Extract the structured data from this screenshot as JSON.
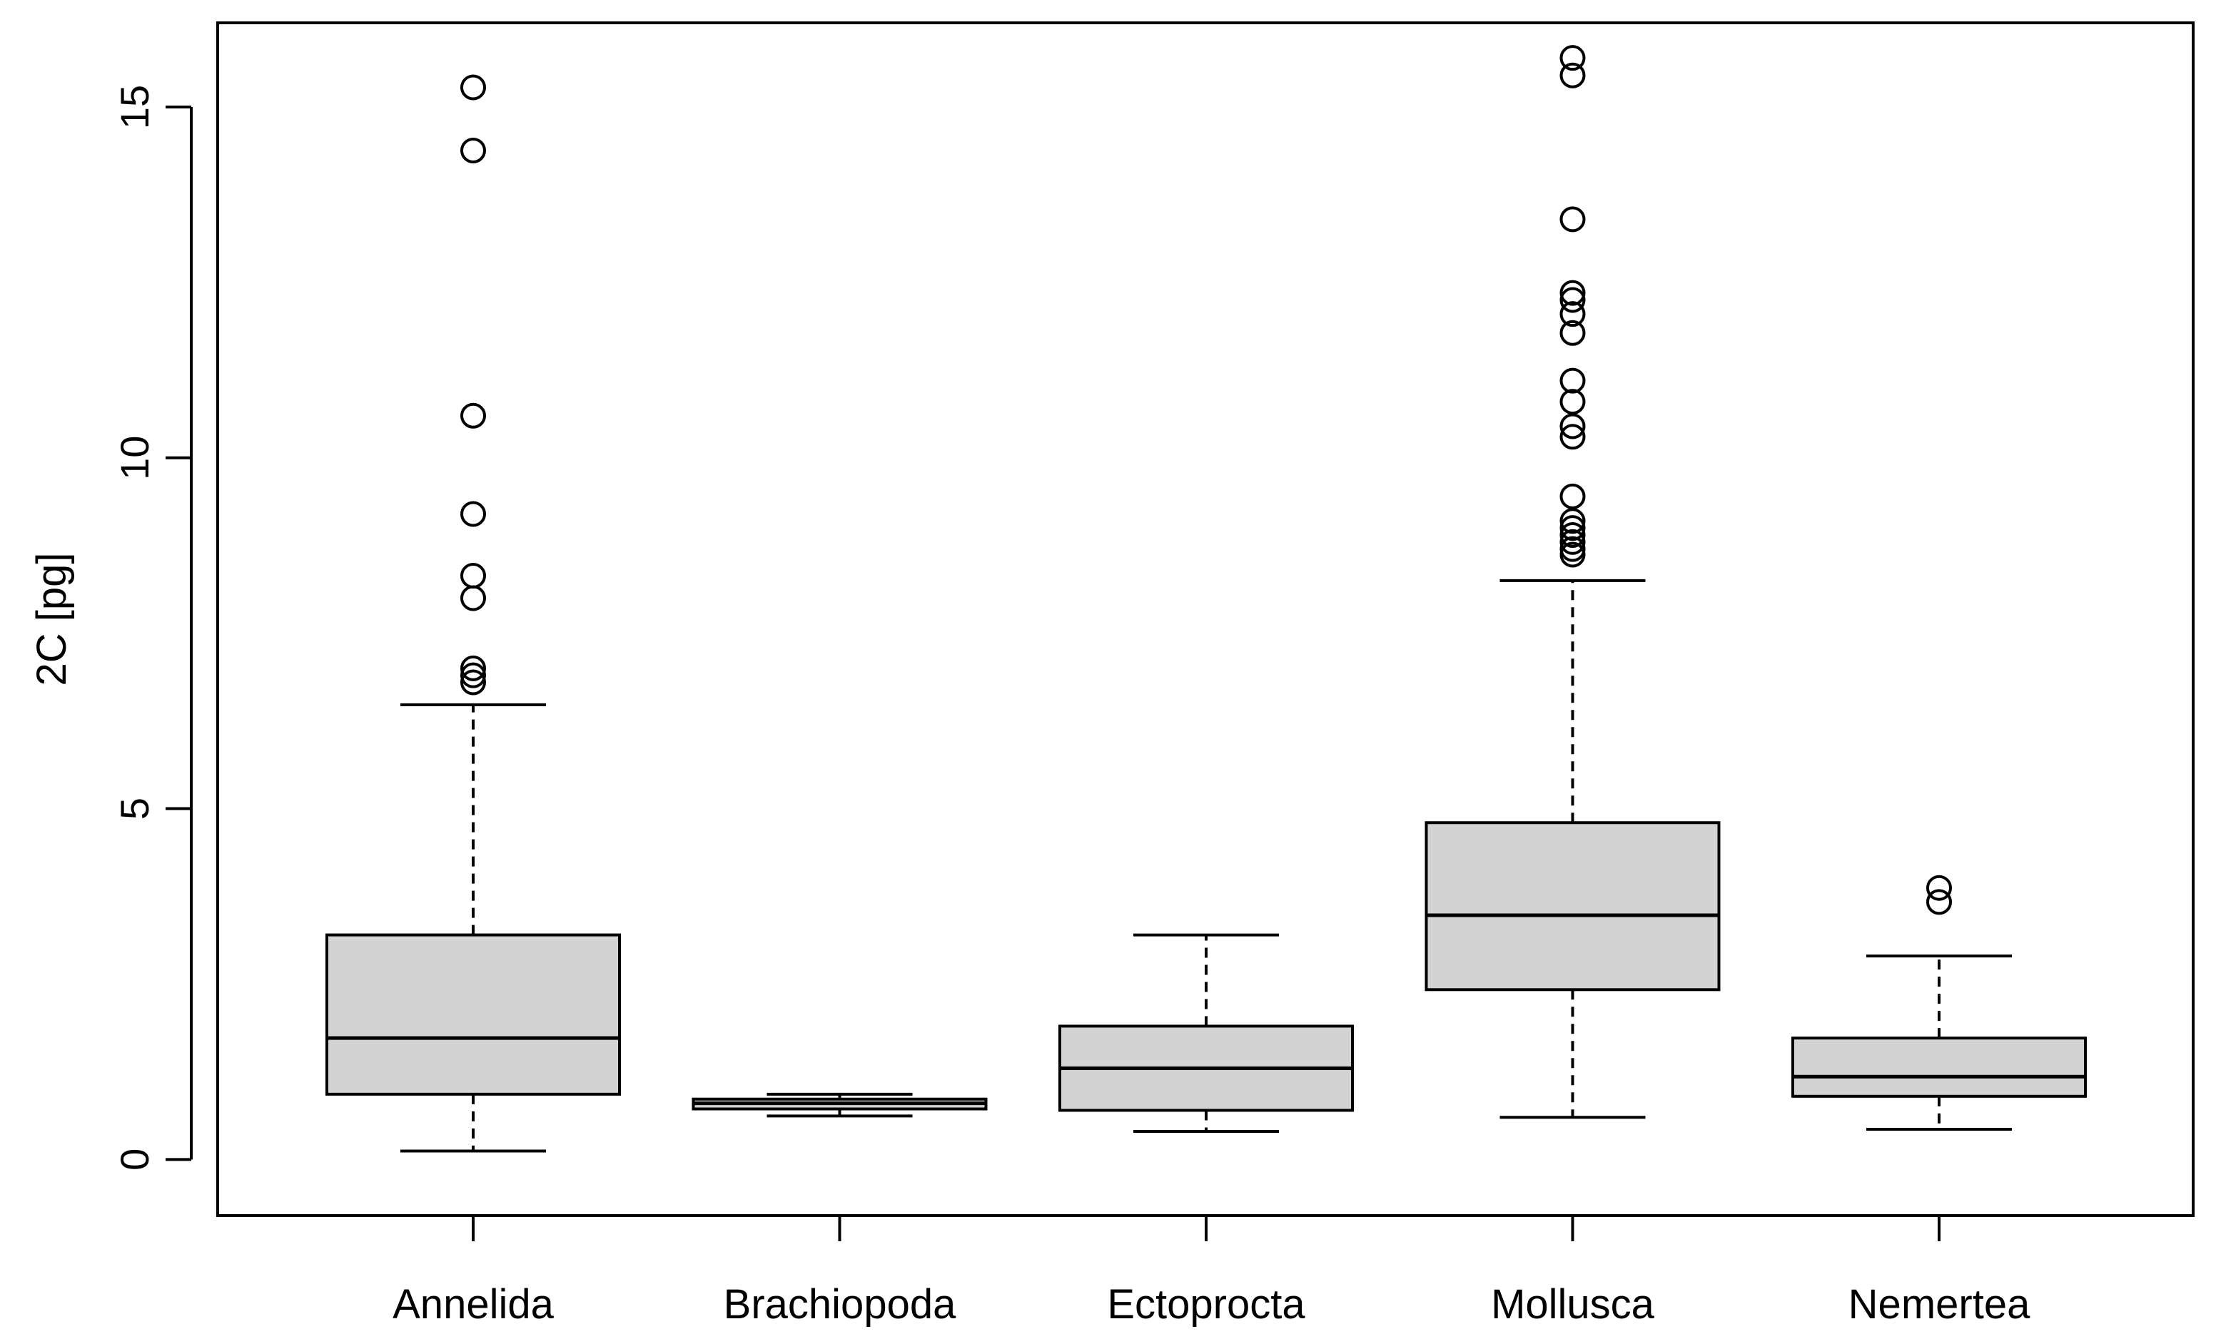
{
  "chart_data": {
    "type": "boxplot",
    "title": "",
    "xlabel": "",
    "ylabel": "2C [pg]",
    "ylim": [
      -0.8,
      16.2
    ],
    "yticks": [
      0,
      5,
      10,
      15
    ],
    "ytick_labels": [
      "0",
      "5",
      "10",
      "15"
    ],
    "grid": false,
    "legend": "none",
    "box_fill": "#d3d3d3",
    "line_color": "#000000",
    "categories": [
      "Annelida",
      "Brachiopoda",
      "Ectoprocta",
      "Mollusca",
      "Nemertea"
    ],
    "boxes": [
      {
        "name": "Annelida",
        "whisker_low": 0.12,
        "q1": 0.93,
        "median": 1.73,
        "q3": 3.2,
        "whisker_high": 6.48,
        "outliers": [
          6.8,
          6.9,
          7.0,
          8.0,
          8.32,
          9.2,
          10.6,
          14.38,
          15.28
        ]
      },
      {
        "name": "Brachiopoda",
        "whisker_low": 0.62,
        "q1": 0.72,
        "median": 0.8,
        "q3": 0.86,
        "whisker_high": 0.93,
        "outliers": []
      },
      {
        "name": "Ectoprocta",
        "whisker_low": 0.4,
        "q1": 0.7,
        "median": 1.3,
        "q3": 1.9,
        "whisker_high": 3.2,
        "outliers": []
      },
      {
        "name": "Mollusca",
        "whisker_low": 0.6,
        "q1": 2.42,
        "median": 3.48,
        "q3": 4.8,
        "whisker_high": 8.25,
        "outliers": [
          8.62,
          8.7,
          8.8,
          8.9,
          9.0,
          9.1,
          9.45,
          10.3,
          10.45,
          10.8,
          11.1,
          11.78,
          12.05,
          12.25,
          12.35,
          13.4,
          15.45,
          15.7
        ]
      },
      {
        "name": "Nemertea",
        "whisker_low": 0.43,
        "q1": 0.9,
        "median": 1.18,
        "q3": 1.73,
        "whisker_high": 2.9,
        "outliers": [
          3.67,
          3.87
        ]
      }
    ]
  }
}
